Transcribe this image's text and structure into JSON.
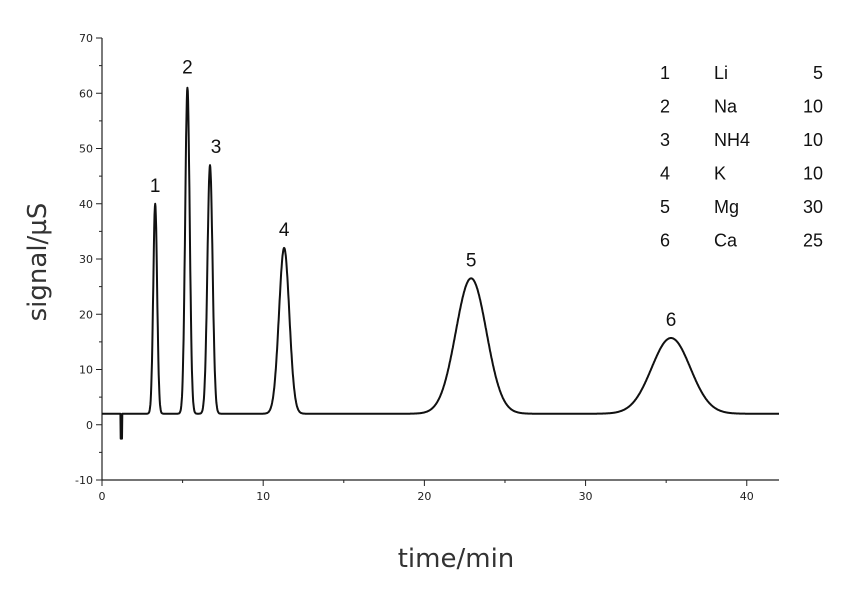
{
  "chart_data": {
    "type": "line",
    "title": "",
    "xlabel": "time/min",
    "ylabel": "signal/µS",
    "xlim": [
      0,
      42
    ],
    "ylim": [
      -10,
      70
    ],
    "xticks": [
      "0",
      "10",
      "20",
      "30",
      "40"
    ],
    "yticks": [
      "-10",
      "0",
      "10",
      "20",
      "30",
      "40",
      "50",
      "60",
      "70"
    ],
    "grid": false,
    "baseline": 2,
    "dip": {
      "x": 1.2,
      "y": -2.5
    },
    "peaks": [
      {
        "label": "1",
        "x": 3.3,
        "height": 40,
        "width": 0.12
      },
      {
        "label": "2",
        "x": 5.3,
        "height": 61,
        "width": 0.14
      },
      {
        "label": "3",
        "x": 6.7,
        "height": 47,
        "width": 0.16
      },
      {
        "label": "4",
        "x": 11.3,
        "height": 32,
        "width": 0.32
      },
      {
        "label": "5",
        "x": 22.9,
        "height": 26.5,
        "width": 0.95
      },
      {
        "label": "6",
        "x": 35.3,
        "height": 15.7,
        "width": 1.2
      }
    ],
    "legend": {
      "position": "top-right",
      "entries": [
        {
          "num": "1",
          "ion": "Li",
          "conc": "5"
        },
        {
          "num": "2",
          "ion": "Na",
          "conc": "10"
        },
        {
          "num": "3",
          "ion": "NH4",
          "conc": "10"
        },
        {
          "num": "4",
          "ion": "K",
          "conc": "10"
        },
        {
          "num": "5",
          "ion": "Mg",
          "conc": "30"
        },
        {
          "num": "6",
          "ion": "Ca",
          "conc": "25"
        }
      ]
    }
  }
}
